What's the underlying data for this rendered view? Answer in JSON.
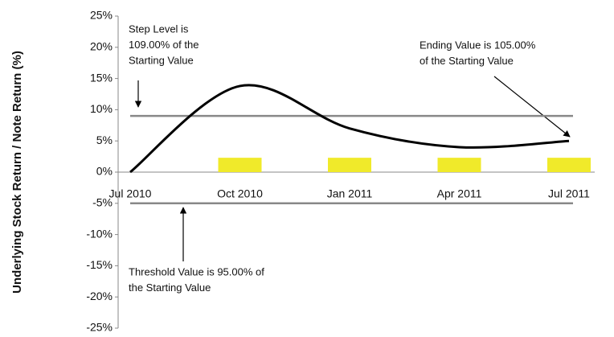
{
  "chart_data": {
    "type": "line",
    "y_label": "Underlying Stock Return / Note Return (%)",
    "categories": [
      "Jul 2010",
      "Oct 2010",
      "Jan 2011",
      "Apr 2011",
      "Jul 2011"
    ],
    "series": [
      {
        "type": "line",
        "color": "#000000",
        "values": [
          0,
          13.8,
          7,
          4,
          5
        ]
      },
      {
        "type": "bar",
        "color": "#f0ea2a",
        "values": [
          null,
          2.3,
          2.3,
          2.3,
          2.3
        ]
      }
    ],
    "reference_lines": [
      {
        "value": 9,
        "color": "#888888"
      },
      {
        "value": -5,
        "color": "#888888"
      }
    ],
    "ylim": [
      -25,
      25
    ],
    "yticks": [
      {
        "value": -25,
        "label": "-25%"
      },
      {
        "value": -20,
        "label": "-20%"
      },
      {
        "value": -15,
        "label": "-15%"
      },
      {
        "value": -10,
        "label": "-10%"
      },
      {
        "value": -5,
        "label": "-5%"
      },
      {
        "value": 0,
        "label": "0%"
      },
      {
        "value": 5,
        "label": "5%"
      },
      {
        "value": 10,
        "label": "10%"
      },
      {
        "value": 15,
        "label": "15%"
      },
      {
        "value": 20,
        "label": "20%"
      },
      {
        "value": 25,
        "label": "25%"
      }
    ],
    "annotations": [
      {
        "lines": [
          "Step Level is",
          "109.00% of the",
          "Starting Value"
        ]
      },
      {
        "lines": [
          "Ending Value is 105.00%",
          "of the Starting Value"
        ]
      },
      {
        "lines": [
          "Threshold Value is 95.00% of",
          "the Starting Value"
        ]
      }
    ]
  }
}
